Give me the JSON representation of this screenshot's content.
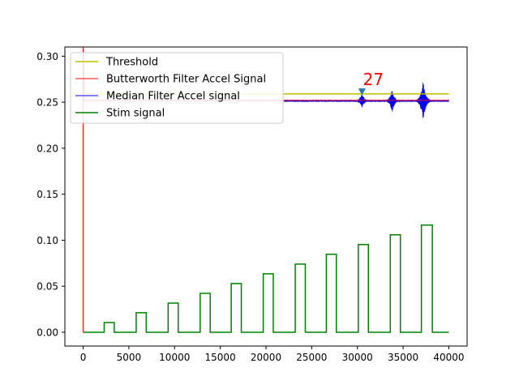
{
  "chart_data": {
    "type": "line",
    "title": "",
    "xlabel": "",
    "ylabel": "",
    "xlim": [
      -2000,
      42000
    ],
    "ylim": [
      -0.015,
      0.31
    ],
    "x_ticks": [
      0,
      5000,
      10000,
      15000,
      20000,
      25000,
      30000,
      35000,
      40000
    ],
    "x_tick_labels": [
      "0",
      "5000",
      "10000",
      "15000",
      "20000",
      "25000",
      "30000",
      "35000",
      "40000"
    ],
    "y_ticks": [
      0.0,
      0.05,
      0.1,
      0.15,
      0.2,
      0.25,
      0.3
    ],
    "y_tick_labels": [
      "0.00",
      "0.05",
      "0.10",
      "0.15",
      "0.20",
      "0.25",
      "0.30"
    ],
    "grid": false,
    "legend_position": "top-left",
    "series": [
      {
        "name": "Threshold",
        "color": "#bfbf00",
        "x": [
          0,
          40000
        ],
        "values": [
          0.259,
          0.259
        ]
      },
      {
        "name": "Butterworth Filter Accel Signal",
        "color": "#ff0000",
        "x": [
          0,
          0,
          150,
          400,
          40000
        ],
        "values": [
          0.0,
          0.31,
          0.252,
          0.252,
          0.252
        ]
      },
      {
        "name": "Median Filter Accel signal",
        "color": "#0000ff",
        "baseline": 0.2515,
        "faded_until_x": 22000,
        "bursts": [
          {
            "x": 30500,
            "min": 0.242,
            "max": 0.26
          },
          {
            "x": 33800,
            "min": 0.237,
            "max": 0.263
          },
          {
            "x": 37200,
            "min": 0.222,
            "max": 0.274
          }
        ]
      },
      {
        "name": "Stim signal",
        "color": "#008000",
        "pulses": [
          {
            "start": 2300,
            "end": 3400,
            "amp": 0.0105
          },
          {
            "start": 5800,
            "end": 6900,
            "amp": 0.0212
          },
          {
            "start": 9300,
            "end": 10400,
            "amp": 0.0317
          },
          {
            "start": 12800,
            "end": 13900,
            "amp": 0.0423
          },
          {
            "start": 16200,
            "end": 17300,
            "amp": 0.0529
          },
          {
            "start": 19700,
            "end": 20800,
            "amp": 0.0635
          },
          {
            "start": 23200,
            "end": 24300,
            "amp": 0.0741
          },
          {
            "start": 26600,
            "end": 27700,
            "amp": 0.0847
          },
          {
            "start": 30100,
            "end": 31200,
            "amp": 0.0953
          },
          {
            "start": 33600,
            "end": 34700,
            "amp": 0.1059
          },
          {
            "start": 37000,
            "end": 38200,
            "amp": 0.1165
          }
        ],
        "x_end": 40000
      }
    ],
    "annotation": {
      "text": "27",
      "color": "#ff0000",
      "marker_x": 30500,
      "marker_y": 0.2615,
      "marker_color": "#1f77b4"
    }
  }
}
